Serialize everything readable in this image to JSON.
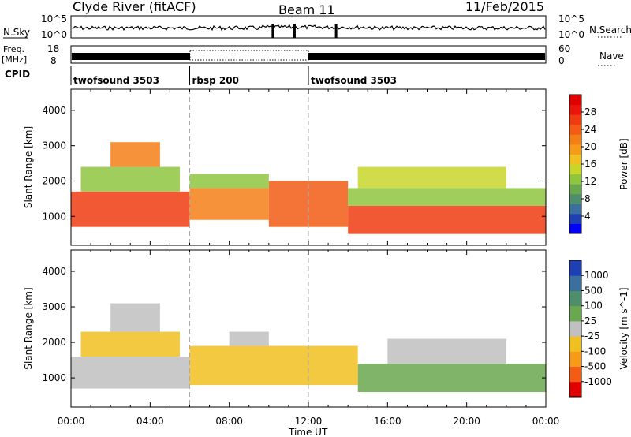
{
  "header": {
    "station": "Clyde River (fitACF)",
    "beam": "Beam 11",
    "date": "11/Feb/2015"
  },
  "top_panel": {
    "nsky_label": "N.Sky",
    "nsearch_label": "N.Search",
    "left_ticks": [
      "10^5",
      "10^0"
    ],
    "right_ticks": [
      "10^5",
      "10^0"
    ]
  },
  "freq_panel": {
    "freq_label": "Freq.",
    "freq_unit": "[MHz]",
    "nave_label": "Nave",
    "left_ticks": [
      "18",
      "8"
    ],
    "right_ticks": [
      "60",
      "0"
    ]
  },
  "cpid": {
    "label": "CPID",
    "segments": [
      {
        "name": "twofsound 3503",
        "start": 0.0,
        "end": 6.0
      },
      {
        "name": "rbsp 200",
        "start": 6.0,
        "end": 12.0
      },
      {
        "name": "twofsound 3503",
        "start": 12.0,
        "end": 24.0
      }
    ]
  },
  "x_axis": {
    "label": "Time UT",
    "ticks": [
      "00:00",
      "04:00",
      "08:00",
      "12:00",
      "16:00",
      "20:00",
      "00:00"
    ],
    "range_hours": [
      0,
      24
    ]
  },
  "chart_data": [
    {
      "type": "heatmap",
      "ylabel": "Slant Range [km]",
      "yticks": [
        "1000",
        "2000",
        "3000",
        "4000"
      ],
      "ylim": [
        180,
        4600
      ],
      "xlim": [
        0,
        24
      ],
      "colorbar": {
        "label": "Power [dB]",
        "tick_labels": [
          "4",
          "8",
          "12",
          "16",
          "20",
          "24",
          "28"
        ],
        "range": [
          0,
          32
        ],
        "colors": [
          "#0000ff",
          "#1f3fb5",
          "#3a6f9e",
          "#4f8e6b",
          "#6aa84f",
          "#8ec63f",
          "#c8d62a",
          "#f0c020",
          "#f79a1a",
          "#f57f17",
          "#f25c14",
          "#ee3b10",
          "#e8160c",
          "#e00000"
        ]
      },
      "bands": [
        {
          "t0": 0.0,
          "t1": 6.0,
          "y0": 700,
          "y1": 1700,
          "value": 26
        },
        {
          "t0": 0.5,
          "t1": 5.5,
          "y0": 1700,
          "y1": 2400,
          "value": 12
        },
        {
          "t0": 2.0,
          "t1": 4.5,
          "y0": 2400,
          "y1": 3100,
          "value": 22
        },
        {
          "t0": 6.0,
          "t1": 10.0,
          "y0": 900,
          "y1": 1800,
          "value": 22
        },
        {
          "t0": 6.0,
          "t1": 10.0,
          "y0": 1800,
          "y1": 2200,
          "value": 12
        },
        {
          "t0": 10.0,
          "t1": 14.0,
          "y0": 700,
          "y1": 2000,
          "value": 24
        },
        {
          "t0": 14.0,
          "t1": 24.0,
          "y0": 500,
          "y1": 1300,
          "value": 26
        },
        {
          "t0": 14.0,
          "t1": 24.0,
          "y0": 1300,
          "y1": 1800,
          "value": 12
        },
        {
          "t0": 14.5,
          "t1": 22.0,
          "y0": 1800,
          "y1": 2400,
          "value": 14
        }
      ]
    },
    {
      "type": "heatmap",
      "ylabel": "Slant Range [km]",
      "yticks": [
        "1000",
        "2000",
        "3000",
        "4000"
      ],
      "ylim": [
        180,
        4600
      ],
      "xlim": [
        0,
        24
      ],
      "colorbar": {
        "label": "Velocity [m s^-1]",
        "tick_labels": [
          "1000",
          "500",
          "100",
          "25",
          "-25",
          "-100",
          "-500",
          "-1000"
        ],
        "range": [
          -1250,
          1250
        ],
        "colors": [
          "#e00000",
          "#f25c14",
          "#f79a1a",
          "#f0c020",
          "#c0c0c0",
          "#6aa84f",
          "#4f8e6b",
          "#3a6f9e",
          "#1f3fb5"
        ]
      },
      "bands": [
        {
          "t0": 0.0,
          "t1": 6.0,
          "y0": 700,
          "y1": 1600,
          "value": 50
        },
        {
          "t0": 0.5,
          "t1": 5.5,
          "y0": 1600,
          "y1": 2300,
          "value": -150
        },
        {
          "t0": 2.0,
          "t1": 4.5,
          "y0": 2300,
          "y1": 3100,
          "value": -60
        },
        {
          "t0": 6.0,
          "t1": 14.5,
          "y0": 800,
          "y1": 1900,
          "value": -250
        },
        {
          "t0": 8.0,
          "t1": 10.0,
          "y0": 1900,
          "y1": 2300,
          "value": 0
        },
        {
          "t0": 14.5,
          "t1": 24.0,
          "y0": 600,
          "y1": 1400,
          "value": 150
        },
        {
          "t0": 16.0,
          "t1": 22.0,
          "y0": 1400,
          "y1": 2100,
          "value": 10
        }
      ]
    }
  ]
}
